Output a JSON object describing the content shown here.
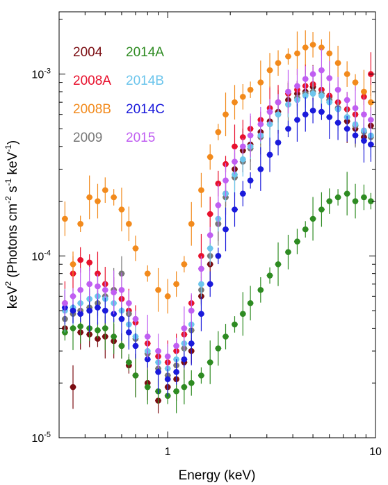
{
  "chart_data": {
    "type": "scatter",
    "title": "",
    "xlabel": "Energy (keV)",
    "ylabel_parts": [
      "keV",
      "2",
      " (Photons cm",
      "-2",
      " s",
      "-1",
      " keV",
      "-1",
      ")"
    ],
    "x_scale": "log",
    "y_scale": "log",
    "xlim": [
      0.3,
      10
    ],
    "ylim": [
      1e-05,
      0.0022
    ],
    "x_ticks": [
      {
        "value": 1,
        "label": "1"
      },
      {
        "value": 10,
        "label": "10"
      }
    ],
    "y_ticks": [
      {
        "value": 1e-05,
        "base": "10",
        "exp": "-5"
      },
      {
        "value": 0.0001,
        "base": "10",
        "exp": "-4"
      },
      {
        "value": 0.001,
        "base": "10",
        "exp": "-3"
      }
    ],
    "grid": false,
    "legend_position": "top-left",
    "series": [
      {
        "name": "2004",
        "color": "#7b0d12",
        "x": [
          0.32,
          0.35,
          0.38,
          0.42,
          0.46,
          0.5,
          0.55,
          0.6,
          0.65,
          0.7,
          0.8,
          0.9,
          1.0,
          1.1,
          1.2,
          1.3,
          1.45,
          1.6,
          1.75,
          1.9,
          2.1,
          2.3,
          2.5,
          2.8,
          3.1,
          3.4,
          3.8,
          4.2,
          4.6,
          5.0,
          5.5,
          6.0,
          6.6,
          7.3,
          8.0,
          8.8,
          9.5
        ],
        "y": [
          4e-05,
          1.9e-05,
          3.8e-05,
          3.7e-05,
          3.5e-05,
          3.6e-05,
          3.4e-05,
          3.2e-05,
          2.5e-05,
          2.2e-05,
          2e-05,
          1.6e-05,
          1.9e-05,
          2.1e-05,
          2.6e-05,
          3e-05,
          6e-05,
          9e-05,
          0.00015,
          0.00022,
          0.0003,
          0.00038,
          0.00041,
          0.00048,
          0.00055,
          0.00062,
          0.00072,
          0.00078,
          0.0008,
          0.00085,
          0.00082,
          0.00075,
          0.00065,
          0.00055,
          0.0005,
          0.00045,
          0.00052
        ]
      },
      {
        "name": "2008A",
        "color": "#e8112d",
        "x": [
          0.32,
          0.35,
          0.38,
          0.42,
          0.46,
          0.5,
          0.55,
          0.6,
          0.65,
          0.7,
          0.8,
          0.9,
          1.0,
          1.1,
          1.2,
          1.3,
          1.45,
          1.6,
          1.75,
          1.9,
          2.1,
          2.3,
          2.5,
          2.8,
          3.1,
          3.4,
          3.8,
          4.2,
          4.6,
          5.0,
          5.5,
          6.0,
          6.6,
          7.3,
          8.0,
          8.8,
          9.5
        ],
        "y": [
          5.5e-05,
          8e-05,
          9.5e-05,
          9.2e-05,
          8e-05,
          7e-05,
          6.5e-05,
          5.8e-05,
          5e-05,
          4.3e-05,
          3.3e-05,
          2.8e-05,
          2.6e-05,
          3e-05,
          3.7e-05,
          5.5e-05,
          0.0001,
          0.00017,
          0.00025,
          0.00032,
          0.0004,
          0.00045,
          0.0005,
          0.00056,
          0.00065,
          0.0007,
          0.00078,
          0.00082,
          0.00086,
          0.00088,
          0.00082,
          0.00076,
          0.0007,
          0.00064,
          0.0006,
          0.00075,
          0.001
        ]
      },
      {
        "name": "2008B",
        "color": "#f28a1c",
        "x": [
          0.32,
          0.35,
          0.38,
          0.42,
          0.46,
          0.5,
          0.55,
          0.6,
          0.65,
          0.7,
          0.8,
          0.9,
          1.0,
          1.1,
          1.2,
          1.3,
          1.45,
          1.6,
          1.75,
          1.9,
          2.1,
          2.3,
          2.5,
          2.8,
          3.1,
          3.4,
          3.8,
          4.2,
          4.6,
          5.0,
          5.5,
          6.0,
          6.6,
          7.3,
          8.0,
          8.8,
          9.5
        ],
        "y": [
          0.00016,
          9e-05,
          0.00015,
          0.00021,
          0.0002,
          0.00023,
          0.00021,
          0.00018,
          0.00015,
          0.00011,
          8e-05,
          6.5e-05,
          6e-05,
          7e-05,
          9e-05,
          0.00015,
          0.00023,
          0.00035,
          0.00048,
          0.0006,
          0.0007,
          0.00075,
          0.00082,
          0.0009,
          0.00105,
          0.00115,
          0.00125,
          0.0013,
          0.0014,
          0.00145,
          0.0014,
          0.0013,
          0.00115,
          0.001,
          0.0009,
          0.0008,
          0.0007
        ]
      },
      {
        "name": "2009",
        "color": "#777777",
        "x": [
          0.32,
          0.35,
          0.38,
          0.42,
          0.46,
          0.5,
          0.55,
          0.6,
          0.65,
          0.7,
          0.8,
          0.9,
          1.0,
          1.1,
          1.2,
          1.3,
          1.45,
          1.6,
          1.75,
          1.9,
          2.1,
          2.3,
          2.5,
          2.8,
          3.1,
          3.4,
          3.8,
          4.2,
          4.6,
          5.0,
          5.5,
          6.0,
          6.6,
          7.3,
          8.0,
          8.8,
          9.5
        ],
        "y": [
          4.5e-05,
          4.8e-05,
          5e-05,
          5.2e-05,
          5.5e-05,
          6e-05,
          6.5e-05,
          8e-05,
          4.8e-05,
          3.5e-05,
          2.9e-05,
          2.4e-05,
          2.2e-05,
          2.5e-05,
          3.1e-05,
          3.9e-05,
          6.5e-05,
          0.0001,
          0.00015,
          0.00021,
          0.00027,
          0.00033,
          0.00039,
          0.00045,
          0.00053,
          0.0006,
          0.00068,
          0.00074,
          0.00078,
          0.0008,
          0.00078,
          0.00072,
          0.00065,
          0.00058,
          0.00052,
          0.00048,
          0.00045
        ]
      },
      {
        "name": "2014A",
        "color": "#2e8b22",
        "x": [
          0.32,
          0.35,
          0.38,
          0.42,
          0.46,
          0.5,
          0.55,
          0.6,
          0.65,
          0.7,
          0.8,
          0.9,
          1.0,
          1.1,
          1.2,
          1.3,
          1.45,
          1.6,
          1.75,
          1.9,
          2.1,
          2.3,
          2.5,
          2.8,
          3.1,
          3.4,
          3.8,
          4.2,
          4.6,
          5.0,
          5.5,
          6.0,
          6.6,
          7.3,
          8.0,
          8.8,
          9.5
        ],
        "y": [
          3.8e-05,
          4e-05,
          4.1e-05,
          4e-05,
          3.9e-05,
          4e-05,
          3.6e-05,
          3.2e-05,
          2.6e-05,
          2.2e-05,
          1.9e-05,
          1.8e-05,
          1.7e-05,
          1.8e-05,
          1.9e-05,
          2e-05,
          2.2e-05,
          2.6e-05,
          3.1e-05,
          3.6e-05,
          4.2e-05,
          4.8e-05,
          5.5e-05,
          6.5e-05,
          7.8e-05,
          9e-05,
          0.000105,
          0.00012,
          0.00014,
          0.00016,
          0.00018,
          0.0002,
          0.00021,
          0.00022,
          0.0002,
          0.00021,
          0.0002
        ]
      },
      {
        "name": "2014B",
        "color": "#6cc5ec",
        "x": [
          0.32,
          0.35,
          0.38,
          0.42,
          0.46,
          0.5,
          0.55,
          0.6,
          0.65,
          0.7,
          0.8,
          0.9,
          1.0,
          1.1,
          1.2,
          1.3,
          1.45,
          1.6,
          1.75,
          1.9,
          2.1,
          2.3,
          2.5,
          2.8,
          3.1,
          3.4,
          3.8,
          4.2,
          4.6,
          5.0,
          5.5,
          6.0,
          6.6,
          7.3,
          8.0,
          8.8,
          9.5
        ],
        "y": [
          5e-05,
          5.2e-05,
          5.5e-05,
          5.8e-05,
          6e-05,
          5.8e-05,
          5.5e-05,
          5e-05,
          4.2e-05,
          3.6e-05,
          3e-05,
          2.6e-05,
          2.4e-05,
          2.7e-05,
          3.3e-05,
          4.2e-05,
          7e-05,
          0.00011,
          0.00016,
          0.00022,
          0.00028,
          0.00034,
          0.0004,
          0.00046,
          0.00053,
          0.0006,
          0.00068,
          0.00072,
          0.00076,
          0.00078,
          0.00076,
          0.0007,
          0.00064,
          0.00058,
          0.00053,
          0.00049,
          0.00046
        ]
      },
      {
        "name": "2014C",
        "color": "#1a1adb",
        "x": [
          0.32,
          0.35,
          0.38,
          0.42,
          0.46,
          0.5,
          0.55,
          0.6,
          0.65,
          0.7,
          0.8,
          0.9,
          1.0,
          1.1,
          1.2,
          1.3,
          1.45,
          1.6,
          1.75,
          1.9,
          2.1,
          2.3,
          2.5,
          2.8,
          3.1,
          3.4,
          3.8,
          4.2,
          4.6,
          5.0,
          5.5,
          6.0,
          6.6,
          7.3,
          8.0,
          8.8,
          9.5
        ],
        "y": [
          5.2e-05,
          5e-05,
          4.8e-05,
          5e-05,
          5.2e-05,
          5e-05,
          4.8e-05,
          4.5e-05,
          3.8e-05,
          3.2e-05,
          2.7e-05,
          2.3e-05,
          2.1e-05,
          2.3e-05,
          2.7e-05,
          3.3e-05,
          4.8e-05,
          7e-05,
          0.0001,
          0.00014,
          0.00018,
          0.00022,
          0.00026,
          0.0003,
          0.00036,
          0.00042,
          0.0005,
          0.00056,
          0.0006,
          0.00063,
          0.00062,
          0.00058,
          0.00054,
          0.0005,
          0.00046,
          0.00043,
          0.00041
        ]
      },
      {
        "name": "2015",
        "color": "#c05ef2",
        "x": [
          0.32,
          0.35,
          0.38,
          0.42,
          0.46,
          0.5,
          0.55,
          0.6,
          0.65,
          0.7,
          0.8,
          0.9,
          1.0,
          1.1,
          1.2,
          1.3,
          1.45,
          1.6,
          1.75,
          1.9,
          2.1,
          2.3,
          2.5,
          2.8,
          3.1,
          3.4,
          3.8,
          4.2,
          4.6,
          5.0,
          5.5,
          6.0,
          6.6,
          7.3,
          8.0,
          8.8,
          9.5
        ],
        "y": [
          5.5e-05,
          6e-05,
          6.5e-05,
          7e-05,
          6.8e-05,
          6.5e-05,
          6.3e-05,
          6.5e-05,
          5.5e-05,
          4.5e-05,
          3.6e-05,
          3e-05,
          2.8e-05,
          3.2e-05,
          4e-05,
          5e-05,
          8.5e-05,
          0.00013,
          0.00019,
          0.00026,
          0.00033,
          0.0004,
          0.00046,
          0.00053,
          0.00062,
          0.0007,
          0.0008,
          0.00086,
          0.00094,
          0.001,
          0.00105,
          0.00095,
          0.00082,
          0.00072,
          0.00065,
          0.0006,
          0.00056
        ]
      }
    ]
  }
}
